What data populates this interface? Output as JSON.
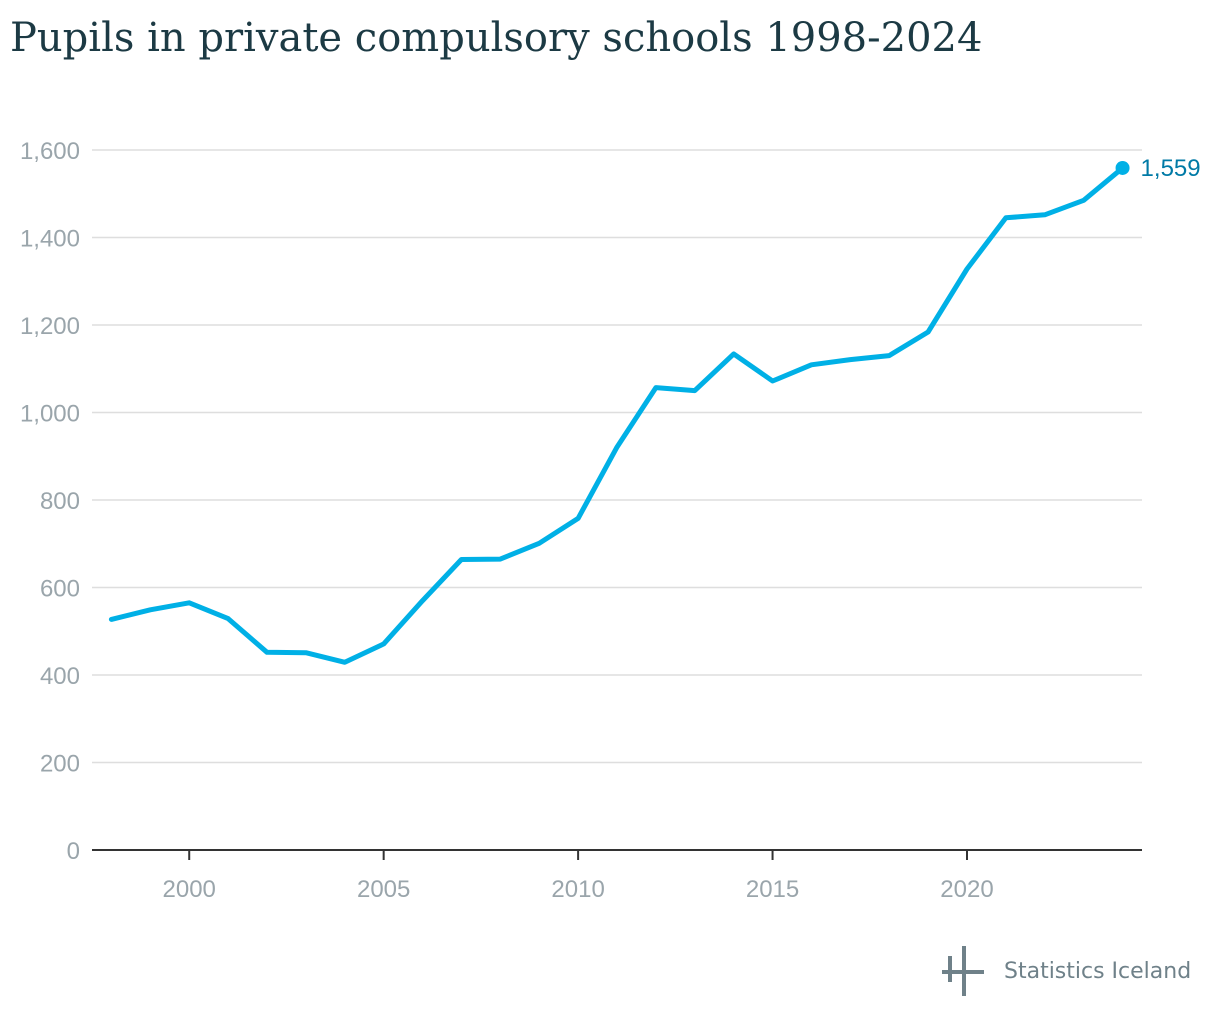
{
  "title": "Pupils in private compulsory schools 1998-2024",
  "source": {
    "name": "Statistics Iceland",
    "logo_icon": "statistics-iceland-logo-icon"
  },
  "colors": {
    "line": "#00b0e6",
    "end_label": "#007aa6",
    "title": "#1c3a44",
    "tick_label": "#9aa5ab",
    "gridline": "#dedede",
    "baseline": "#333333",
    "source": "#6f8189"
  },
  "chart_data": {
    "type": "line",
    "title": "Pupils in private compulsory schools 1998-2024",
    "xlabel": "",
    "ylabel": "",
    "x": [
      1998,
      1999,
      2000,
      2001,
      2002,
      2003,
      2004,
      2005,
      2006,
      2007,
      2008,
      2009,
      2010,
      2011,
      2012,
      2013,
      2014,
      2015,
      2016,
      2017,
      2018,
      2019,
      2020,
      2021,
      2022,
      2023,
      2024
    ],
    "series": [
      {
        "values": [
          527,
          549,
          565,
          529,
          452,
          451,
          429,
          471,
          570,
          664,
          665,
          701,
          758,
          921,
          1057,
          1050,
          1134,
          1072,
          1109,
          1121,
          1130,
          1184,
          1328,
          1445,
          1452,
          1485,
          1559
        ]
      }
    ],
    "x_ticks": [
      2000,
      2005,
      2010,
      2015,
      2020
    ],
    "x_tick_labels": [
      "2000",
      "2005",
      "2010",
      "2015",
      "2020"
    ],
    "y_ticks": [
      0,
      200,
      400,
      600,
      800,
      1000,
      1200,
      1400,
      1600
    ],
    "y_tick_labels": [
      "0",
      "200",
      "400",
      "600",
      "800",
      "1,000",
      "1,200",
      "1,400",
      "1,600"
    ],
    "xlim": [
      1997.5,
      2024.5
    ],
    "ylim": [
      0,
      1600
    ],
    "grid": "horizontal",
    "legend": "none",
    "end_point_label": "1,559"
  }
}
